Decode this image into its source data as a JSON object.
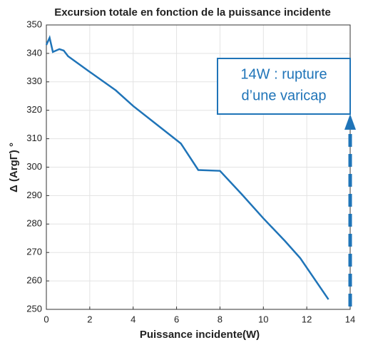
{
  "chart_data": {
    "type": "line",
    "title": "Excursion totale en fonction de la puissance incidente",
    "xlabel": "Puissance incidente(W)",
    "ylabel": "Δ (ArgΓ) °",
    "annotation": [
      "14W : rupture",
      "d’une varicap"
    ],
    "x": [
      0,
      0.15,
      0.3,
      0.6,
      0.8,
      1,
      2,
      3.2,
      4,
      5,
      6.2,
      7,
      8,
      9,
      10,
      11,
      11.7,
      13
    ],
    "series": [
      {
        "name": "Excursion",
        "color": "#1f74b8",
        "values": [
          343,
          345.5,
          340.5,
          341.5,
          341,
          339,
          333.5,
          327,
          321.5,
          315.5,
          308.3,
          299,
          298.7,
          290.5,
          282,
          274,
          268,
          253.5
        ]
      }
    ],
    "xlim": [
      0,
      14
    ],
    "xticks": [
      0,
      2,
      4,
      6,
      8,
      10,
      12,
      14
    ],
    "ylim": [
      250,
      350
    ],
    "yticks": [
      250,
      260,
      270,
      280,
      290,
      300,
      310,
      320,
      330,
      340,
      350
    ],
    "grid": true
  }
}
